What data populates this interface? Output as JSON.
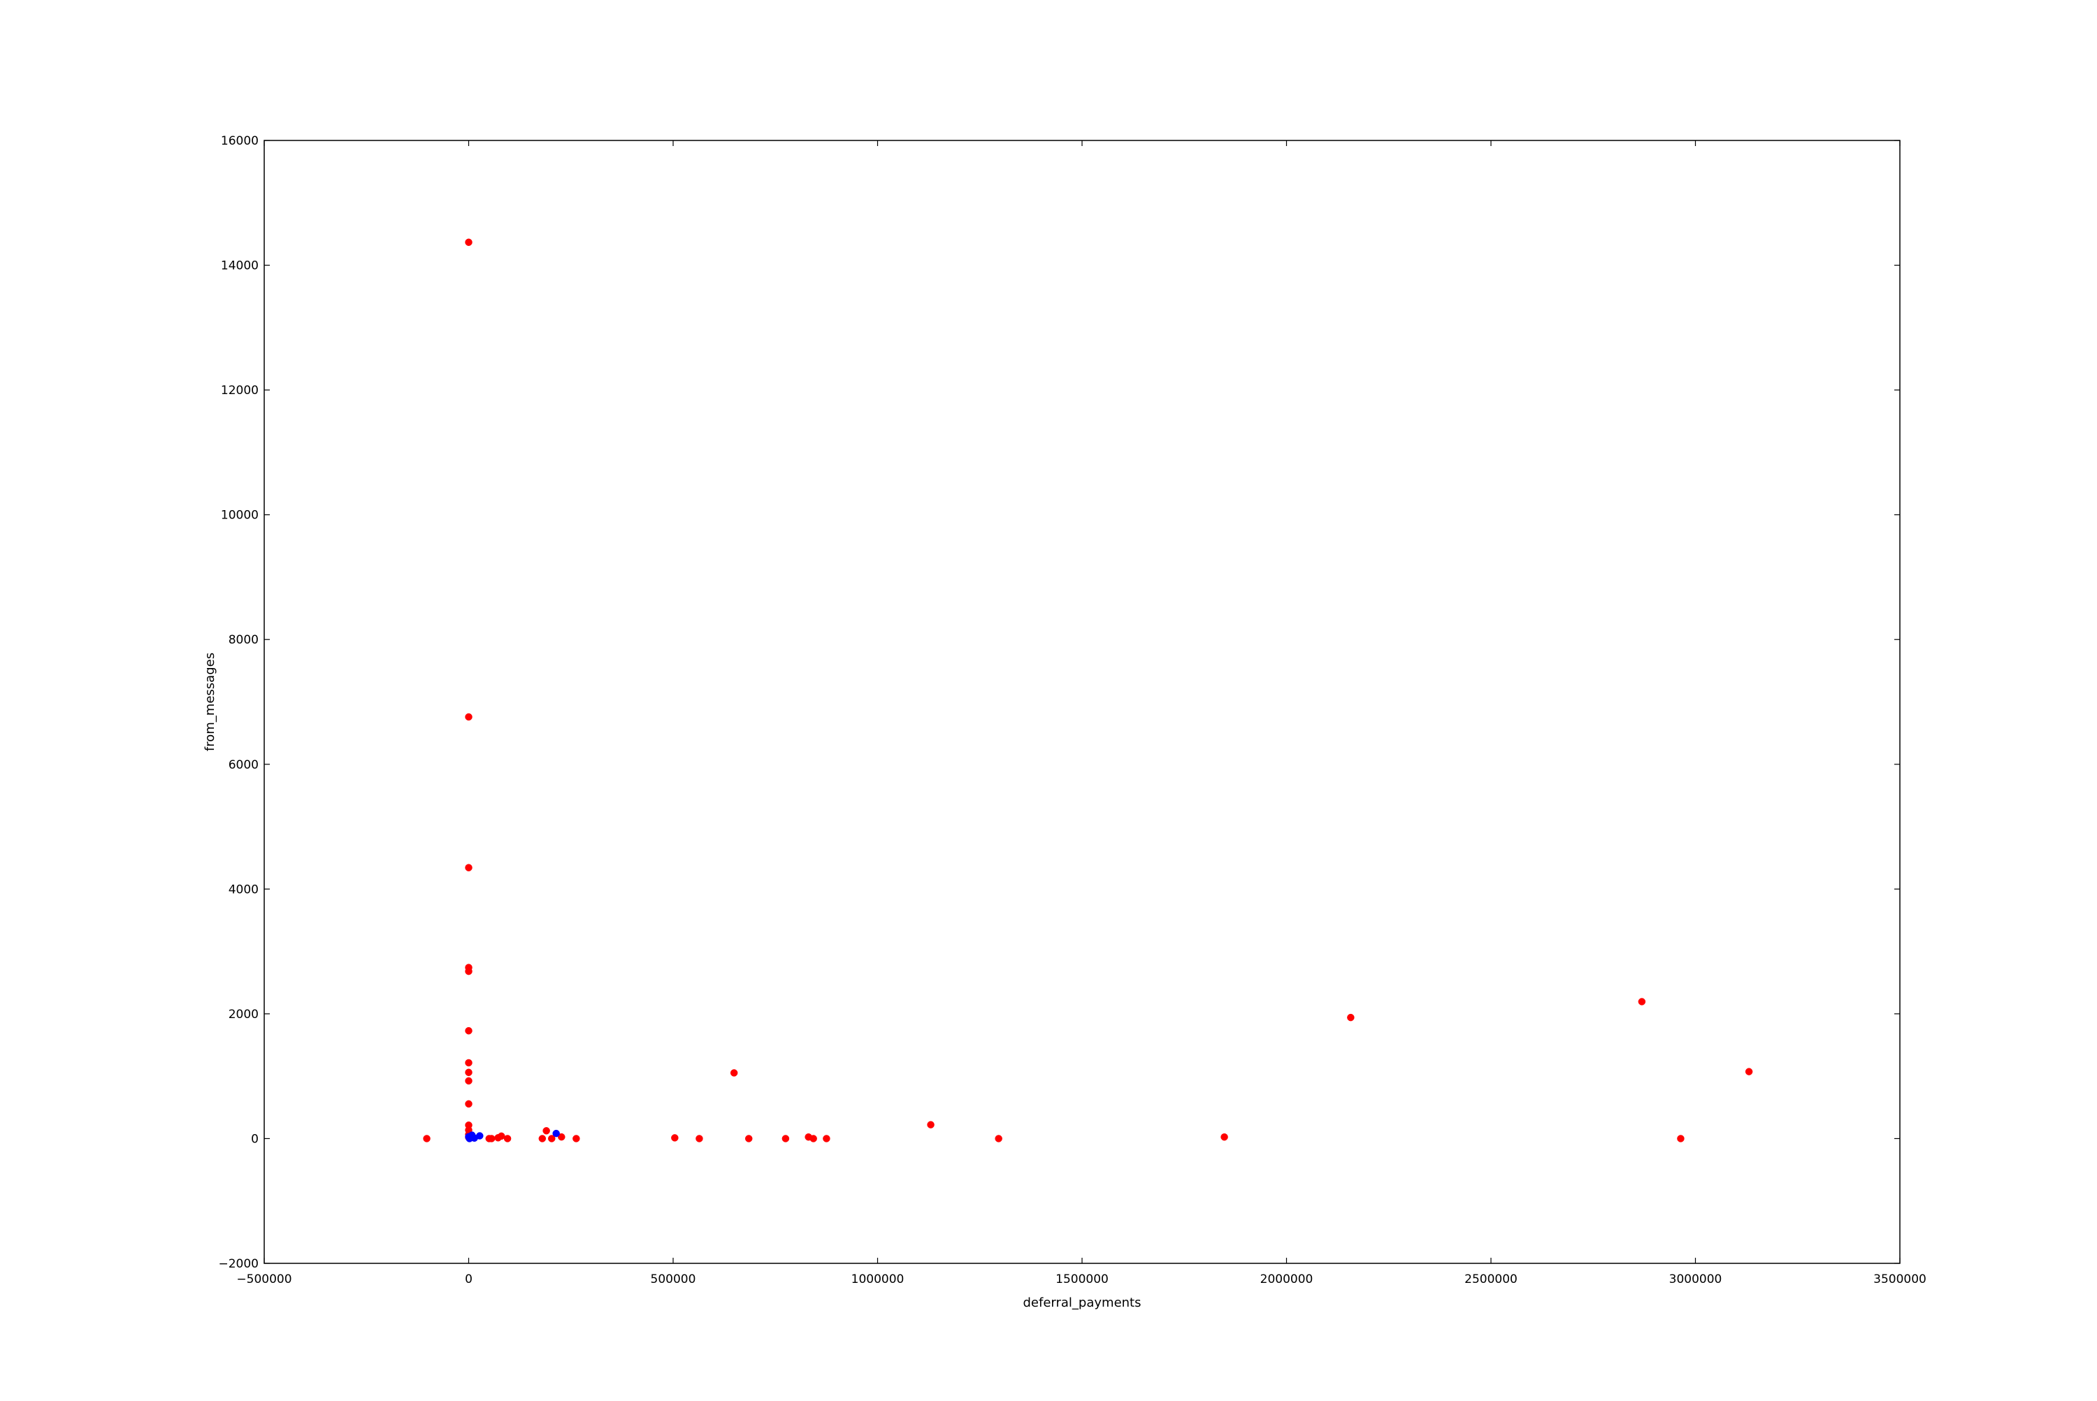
{
  "chart_data": {
    "type": "scatter",
    "title": "",
    "xlabel": "deferral_payments",
    "ylabel": "from_messages",
    "xlim": [
      -500000,
      3500000
    ],
    "ylim": [
      -2000,
      16000
    ],
    "x_ticks": [
      "−500000",
      "0",
      "500000",
      "1000000",
      "1500000",
      "2000000",
      "2500000",
      "3000000",
      "3500000"
    ],
    "x_tick_values": [
      -500000,
      0,
      500000,
      1000000,
      1500000,
      2000000,
      2500000,
      3000000,
      3500000
    ],
    "y_ticks": [
      "−2000",
      "0",
      "2000",
      "4000",
      "6000",
      "8000",
      "10000",
      "12000",
      "14000",
      "16000"
    ],
    "y_tick_values": [
      -2000,
      0,
      2000,
      4000,
      6000,
      8000,
      10000,
      12000,
      14000,
      16000
    ],
    "grid": false,
    "legend": "none",
    "series": [
      {
        "color": "#ff0000",
        "points": [
          {
            "x": 0,
            "y": 14368
          },
          {
            "x": 0,
            "y": 6759
          },
          {
            "x": 0,
            "y": 4343
          },
          {
            "x": 0,
            "y": 2742
          },
          {
            "x": 0,
            "y": 2681
          },
          {
            "x": 0,
            "y": 1728
          },
          {
            "x": 0,
            "y": 1215
          },
          {
            "x": 0,
            "y": 1061
          },
          {
            "x": 0,
            "y": 925
          },
          {
            "x": 0,
            "y": 556
          },
          {
            "x": 0,
            "y": 215
          },
          {
            "x": 0,
            "y": 136
          },
          {
            "x": 0,
            "y": 65
          },
          {
            "x": 0,
            "y": 19
          },
          {
            "x": -102500,
            "y": 0
          },
          {
            "x": 50000,
            "y": 0
          },
          {
            "x": 56000,
            "y": 0
          },
          {
            "x": 72000,
            "y": 13
          },
          {
            "x": 80000,
            "y": 40
          },
          {
            "x": 95000,
            "y": 0
          },
          {
            "x": 180000,
            "y": 0
          },
          {
            "x": 190000,
            "y": 125
          },
          {
            "x": 203000,
            "y": 0
          },
          {
            "x": 227000,
            "y": 26
          },
          {
            "x": 263000,
            "y": 0
          },
          {
            "x": 504000,
            "y": 12
          },
          {
            "x": 564000,
            "y": 0
          },
          {
            "x": 649000,
            "y": 1053
          },
          {
            "x": 685000,
            "y": 0
          },
          {
            "x": 775000,
            "y": 0
          },
          {
            "x": 831000,
            "y": 25
          },
          {
            "x": 843000,
            "y": 0
          },
          {
            "x": 875000,
            "y": 0
          },
          {
            "x": 1130000,
            "y": 222
          },
          {
            "x": 1296000,
            "y": 0
          },
          {
            "x": 1848000,
            "y": 25
          },
          {
            "x": 2157000,
            "y": 1941
          },
          {
            "x": 2869000,
            "y": 2195
          },
          {
            "x": 2964000,
            "y": 0
          },
          {
            "x": 3131000,
            "y": 1073
          }
        ]
      },
      {
        "color": "#0000ff",
        "points": [
          {
            "x": 0,
            "y": 30
          },
          {
            "x": 2000,
            "y": 0
          },
          {
            "x": 5000,
            "y": 12
          },
          {
            "x": 8000,
            "y": 55
          },
          {
            "x": 10000,
            "y": 20
          },
          {
            "x": 14000,
            "y": 8
          },
          {
            "x": 27000,
            "y": 44
          },
          {
            "x": 214000,
            "y": 82
          }
        ]
      }
    ]
  }
}
